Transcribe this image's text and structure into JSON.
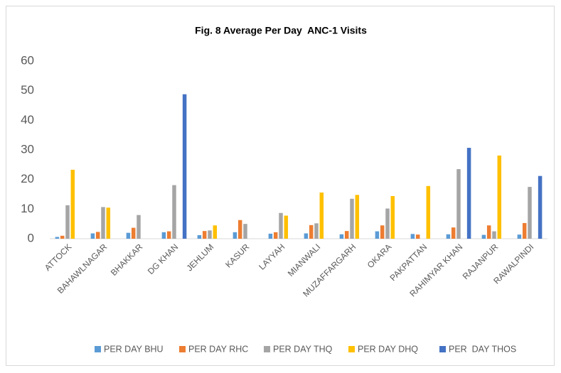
{
  "chart_data": {
    "type": "bar",
    "title": "Fig. 8 Average Per Day  ANC-1 Visits",
    "categories": [
      "ATTOCK",
      "BAHAWLNAGAR",
      "BHAKKAR",
      "DG KHAN",
      "JEHLUM",
      "KASUR",
      "LAYYAH",
      "MIANWALI",
      "MUZAFFARGARH",
      "OKARA",
      "PAKPATTAN",
      "RAHIMYAR KHAN",
      "RAJANPUR",
      "RAWALPINDI"
    ],
    "series": [
      {
        "name": "PER DAY BHU",
        "color": "#5b9bd5",
        "values": [
          0.6,
          1.8,
          2,
          2.2,
          1.2,
          2.2,
          1.7,
          1.8,
          1.5,
          2.5,
          1.6,
          1.5,
          1.3,
          1.4
        ]
      },
      {
        "name": "PER DAY RHC",
        "color": "#ed7d31",
        "values": [
          1,
          2.3,
          3.7,
          2.5,
          2.6,
          6.3,
          2.2,
          4.6,
          2.6,
          4.5,
          1.4,
          3.8,
          4.5,
          5.3
        ]
      },
      {
        "name": "PER DAY THQ",
        "color": "#a5a5a5",
        "values": [
          11.3,
          10.7,
          8,
          18.1,
          2.8,
          5,
          8.7,
          5.2,
          13.5,
          10.2,
          null,
          23.5,
          2.5,
          17.5
        ]
      },
      {
        "name": "PER DAY DHQ",
        "color": "#ffc000",
        "values": [
          23.3,
          10.5,
          null,
          null,
          4.5,
          null,
          7.8,
          15.6,
          14.8,
          14.4,
          17.8,
          null,
          28.1,
          null
        ]
      },
      {
        "name": "PER  DAY THOS",
        "color": "#4472c4",
        "values": [
          null,
          null,
          null,
          48.8,
          null,
          null,
          null,
          null,
          null,
          null,
          null,
          30.7,
          null,
          21.2
        ]
      }
    ],
    "ylim": [
      0,
      60
    ],
    "yticks": [
      0,
      10,
      20,
      30,
      40,
      50,
      60
    ],
    "grid": false,
    "legend": "bottom"
  }
}
